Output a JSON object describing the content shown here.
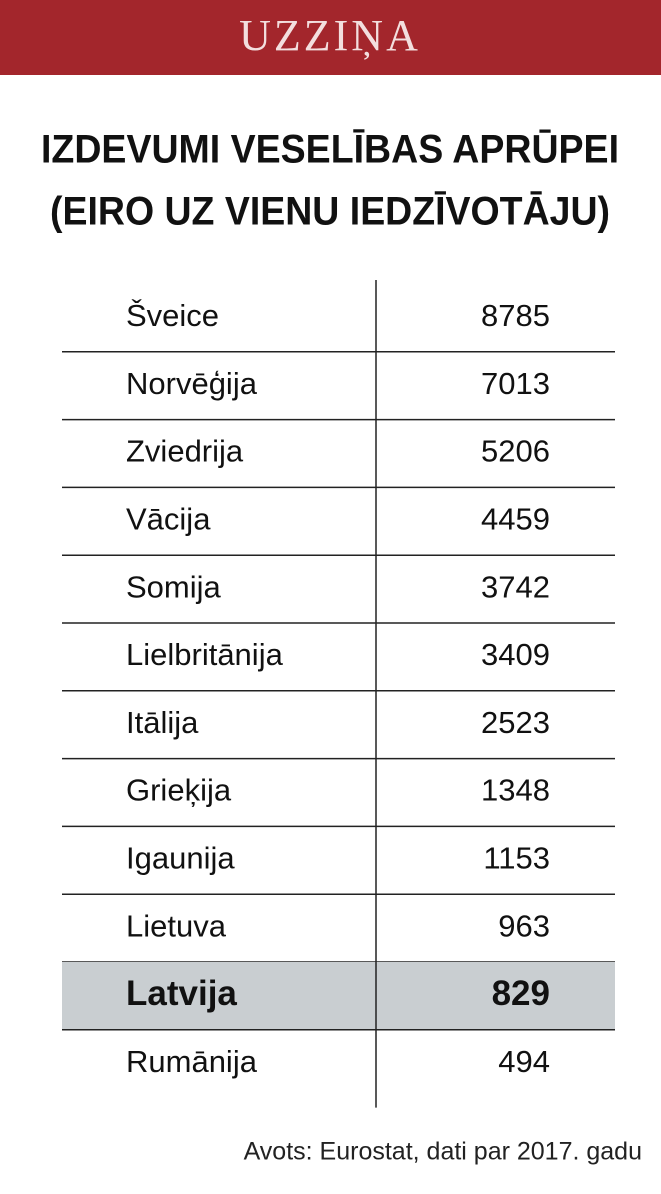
{
  "header": {
    "label": "UZZIŅA",
    "title": [
      "IZDEVUMI VESELĪBAS APRŪPEI",
      "(EIRO UZ VIENU IEDZĪVOTĀJU)"
    ]
  },
  "table": {
    "rows": [
      [
        "Šveice",
        8785
      ],
      [
        "Norvēģija",
        7013
      ],
      [
        "Zviedrija",
        5206
      ],
      [
        "Vācija",
        4459
      ],
      [
        "Somija",
        3742
      ],
      [
        "Lielbritānija",
        3409
      ],
      [
        "Itālija",
        2523
      ],
      [
        "Grieķija",
        1348
      ],
      [
        "Igaunija",
        1153
      ],
      [
        "Lietuva",
        963
      ],
      [
        "Latvija",
        829
      ],
      [
        "Rumānija",
        494
      ]
    ]
  },
  "footer": {
    "source": "Avots: Eurostat, dati par 2017. gadu"
  }
}
